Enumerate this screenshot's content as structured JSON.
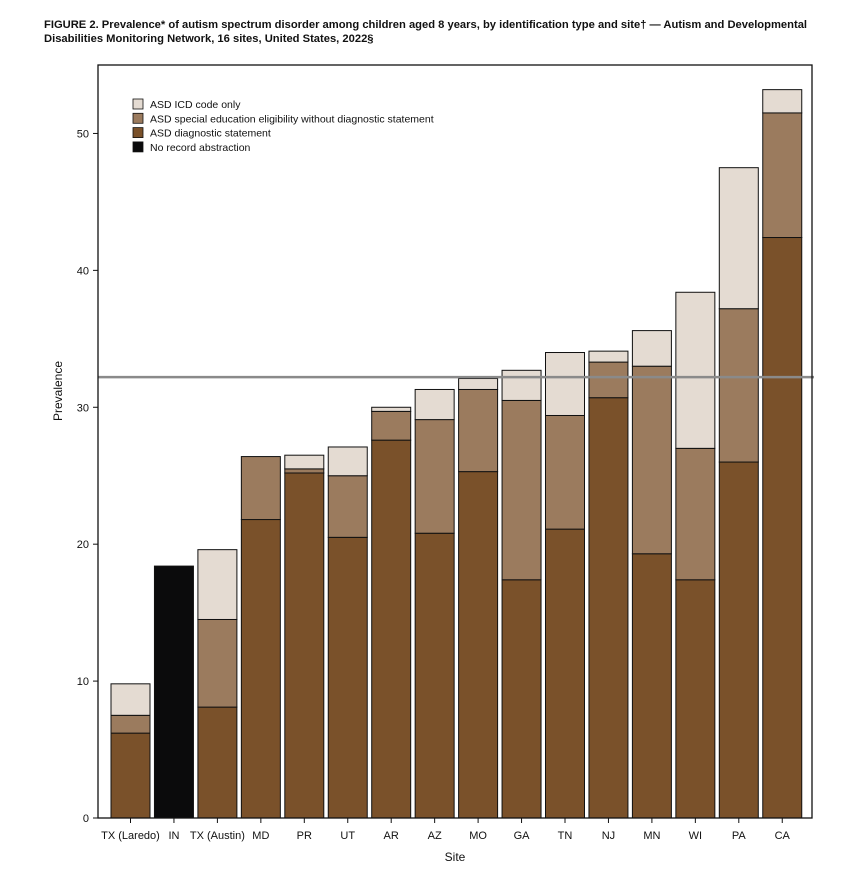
{
  "figure": {
    "title": "FIGURE 2. Prevalence* of autism spectrum disorder among children aged 8 years, by identification type and site† — Autism and Developmental Disabilities Monitoring Network, 16 sites, United States, 2022§"
  },
  "chart_data": {
    "type": "bar",
    "stacked": true,
    "xlabel": "Site",
    "ylabel": "Prevalence",
    "ylim": [
      0,
      55
    ],
    "yticks": [
      0,
      10,
      20,
      30,
      40,
      50
    ],
    "grid": false,
    "legend_position": "top-left",
    "reference_line": {
      "value": 32.2,
      "color": "#8a8a8a"
    },
    "categories": [
      "TX (Laredo)",
      "IN",
      "TX (Austin)",
      "MD",
      "PR",
      "UT",
      "AR",
      "AZ",
      "MO",
      "GA",
      "TN",
      "NJ",
      "MN",
      "WI",
      "PA",
      "CA"
    ],
    "series": [
      {
        "name": "No record abstraction",
        "color": "#0b0b0c",
        "values": [
          0,
          18.4,
          0,
          0,
          0,
          0,
          0,
          0,
          0,
          0,
          0,
          0,
          0,
          0,
          0,
          0
        ]
      },
      {
        "name": "ASD diagnostic statement",
        "color": "#7a512a",
        "values": [
          6.2,
          0,
          8.1,
          21.8,
          25.2,
          20.5,
          27.6,
          20.8,
          25.3,
          17.4,
          21.1,
          30.7,
          19.3,
          17.4,
          26.0,
          42.4
        ]
      },
      {
        "name": "ASD special education eligibility without diagnostic statement",
        "color": "#9b7b5e",
        "values": [
          1.3,
          0,
          6.4,
          4.6,
          0.3,
          4.5,
          2.1,
          8.3,
          6.0,
          13.1,
          8.3,
          2.6,
          13.7,
          9.6,
          11.2,
          9.1
        ]
      },
      {
        "name": "ASD ICD code only",
        "color": "#e4dbd2",
        "values": [
          2.3,
          0,
          5.1,
          0.0,
          1.0,
          2.1,
          0.3,
          2.2,
          0.8,
          2.2,
          4.6,
          0.8,
          2.6,
          11.4,
          10.3,
          1.7
        ]
      }
    ],
    "legend_order": [
      "ASD ICD code only",
      "ASD special education eligibility without diagnostic statement",
      "ASD diagnostic statement",
      "No record abstraction"
    ]
  }
}
